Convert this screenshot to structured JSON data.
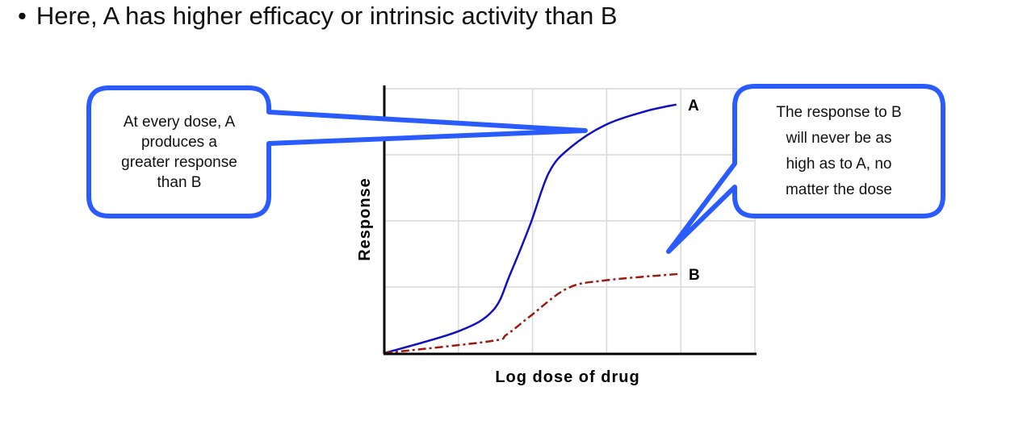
{
  "slide": {
    "bullet": "•",
    "title": "Here, A has higher efficacy or intrinsic activity than B"
  },
  "callouts": {
    "left": [
      "At every dose, A",
      "produces a",
      "greater response",
      "than B"
    ],
    "right": [
      "The response to B",
      "will never be as",
      "high as to A, no",
      "matter the dose"
    ],
    "border_color": "#2a5bff"
  },
  "chart_data": {
    "type": "line",
    "title": "",
    "xlabel": "Log dose of drug",
    "ylabel": "Response",
    "xlim": [
      0,
      5
    ],
    "ylim": [
      0,
      4
    ],
    "grid": true,
    "series": [
      {
        "name": "A",
        "color": "#1010c0",
        "style": "solid",
        "x": [
          0,
          1,
          1.47,
          1.7,
          1.97,
          2.22,
          2.5,
          2.98,
          3.53,
          3.94
        ],
        "y": [
          0,
          0.33,
          0.65,
          1.2,
          1.95,
          2.73,
          3.1,
          3.45,
          3.66,
          3.76
        ]
      },
      {
        "name": "B",
        "color": "#9a1a10",
        "style": "dash-dot",
        "x": [
          0,
          1.43,
          1.65,
          1.97,
          2.47,
          2.98,
          4.0
        ],
        "y": [
          0,
          0.18,
          0.28,
          0.56,
          0.98,
          1.1,
          1.2
        ]
      }
    ]
  }
}
